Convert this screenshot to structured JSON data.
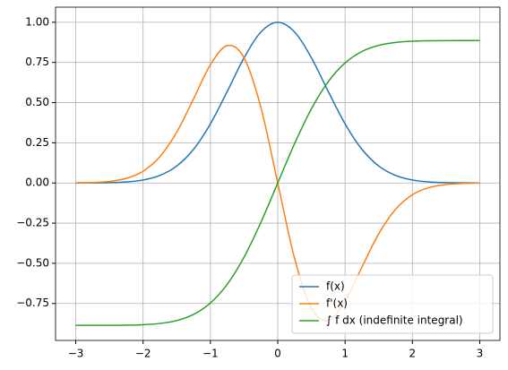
{
  "chart_data": {
    "type": "line",
    "x": [
      -3,
      -2.75,
      -2.5,
      -2.25,
      -2,
      -1.75,
      -1.5,
      -1.25,
      -1,
      -0.75,
      -0.5,
      -0.25,
      0,
      0.25,
      0.5,
      0.75,
      1,
      1.25,
      1.5,
      1.75,
      2,
      2.25,
      2.5,
      2.75,
      3
    ],
    "series": [
      {
        "name": "f(x)",
        "color": "#1f77b4",
        "values": [
          0.0001,
          0.0005,
          0.0019,
          0.0063,
          0.0183,
          0.0468,
          0.1054,
          0.2096,
          0.3679,
          0.5698,
          0.7788,
          0.9394,
          1,
          0.9394,
          0.7788,
          0.5698,
          0.3679,
          0.2096,
          0.1054,
          0.0468,
          0.0183,
          0.0063,
          0.0019,
          0.0005,
          0.0001
        ]
      },
      {
        "name": "f'(x)",
        "color": "#ff7f0e",
        "values": [
          0.0007,
          0.0029,
          0.0097,
          0.0285,
          0.0733,
          0.1639,
          0.3162,
          0.524,
          0.7358,
          0.8547,
          0.7788,
          0.4697,
          0,
          -0.4697,
          -0.7788,
          -0.8547,
          -0.7358,
          -0.524,
          -0.3162,
          -0.1639,
          -0.0733,
          -0.0285,
          -0.0097,
          -0.0029,
          -0.0007
        ]
      },
      {
        "name": "∫ f dx (indefinite integral)",
        "color": "#2ca02c",
        "values": [
          -0.8862,
          -0.8861,
          -0.8859,
          -0.8849,
          -0.8821,
          -0.8744,
          -0.8562,
          -0.8179,
          -0.7468,
          -0.6302,
          -0.4613,
          -0.2449,
          0,
          0.2449,
          0.4613,
          0.6302,
          0.7468,
          0.8179,
          0.8562,
          0.8744,
          0.8821,
          0.8849,
          0.8859,
          0.8861,
          0.8862
        ]
      }
    ],
    "xlim": [
      -3.3,
      3.3
    ],
    "xticks": [
      {
        "value": -3,
        "label": "−3"
      },
      {
        "value": -2,
        "label": "−2"
      },
      {
        "value": -1,
        "label": "−1"
      },
      0,
      1,
      2,
      3
    ],
    "ylim": [
      -0.98,
      1.094
    ],
    "yticks": [
      {
        "value": -0.75,
        "label": "−0.75"
      },
      {
        "value": -0.5,
        "label": "−0.50"
      },
      {
        "value": -0.25,
        "label": "−0.25"
      },
      {
        "value": 0,
        "label": "0.00"
      },
      {
        "value": 0.25,
        "label": "0.25"
      },
      {
        "value": 0.5,
        "label": "0.50"
      },
      {
        "value": 0.75,
        "label": "0.75"
      },
      {
        "value": 1,
        "label": "1.00"
      }
    ],
    "grid": true,
    "legend": "lower right"
  }
}
